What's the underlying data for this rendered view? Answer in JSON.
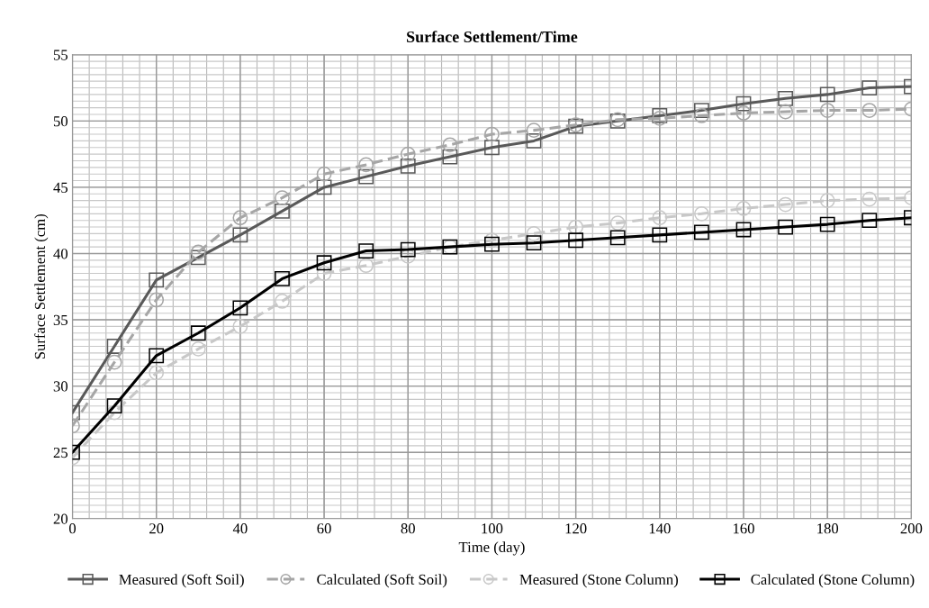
{
  "chart_data": {
    "type": "line",
    "title": "Surface Settlement/Time",
    "xlabel": "Time (day)",
    "ylabel": "Surface Settlement (cm)",
    "x": [
      0,
      10,
      20,
      30,
      40,
      50,
      60,
      70,
      80,
      90,
      100,
      110,
      120,
      130,
      140,
      150,
      160,
      170,
      180,
      190,
      200
    ],
    "xlim": [
      0,
      200
    ],
    "xticks": [
      0,
      20,
      40,
      60,
      80,
      100,
      120,
      140,
      160,
      180,
      200
    ],
    "ylim": [
      20,
      55
    ],
    "yticks": [
      20,
      25,
      30,
      35,
      40,
      45,
      50,
      55
    ],
    "grid": true,
    "legend": "bottom",
    "series": [
      {
        "name": "Measured (Soft Soil)",
        "color": "#595959",
        "marker": "square",
        "line_style": "solid",
        "values": [
          28,
          33,
          38,
          39.7,
          41.4,
          43.2,
          45,
          45.8,
          46.6,
          47.3,
          48,
          48.5,
          49.6,
          50,
          50.4,
          50.8,
          51.3,
          51.7,
          52,
          52.5,
          52.6
        ]
      },
      {
        "name": "Calculated (Soft Soil)",
        "color": "#a6a6a6",
        "marker": "circle",
        "line_style": "dashed",
        "values": [
          27,
          31.8,
          36.5,
          40.1,
          42.7,
          44.2,
          46,
          46.7,
          47.5,
          48.2,
          49,
          49.3,
          49.7,
          50.1,
          50.2,
          50.4,
          50.6,
          50.7,
          50.8,
          50.8,
          50.9
        ]
      },
      {
        "name": "Measured (Stone Column)",
        "color": "#c8c8c8",
        "marker": "circle",
        "line_style": "dashed",
        "values": [
          24.6,
          28,
          31,
          32.8,
          34.5,
          36.4,
          38.5,
          39.1,
          39.8,
          40.5,
          41,
          41.5,
          42,
          42.3,
          42.7,
          43,
          43.4,
          43.7,
          44,
          44.1,
          44.2
        ]
      },
      {
        "name": "Calculated (Stone Column)",
        "color": "#000000",
        "marker": "square",
        "line_style": "solid",
        "values": [
          25,
          28.5,
          32.3,
          34,
          35.9,
          38.1,
          39.3,
          40.2,
          40.3,
          40.5,
          40.7,
          40.8,
          41,
          41.2,
          41.4,
          41.6,
          41.8,
          42,
          42.2,
          42.5,
          42.7
        ]
      }
    ]
  }
}
